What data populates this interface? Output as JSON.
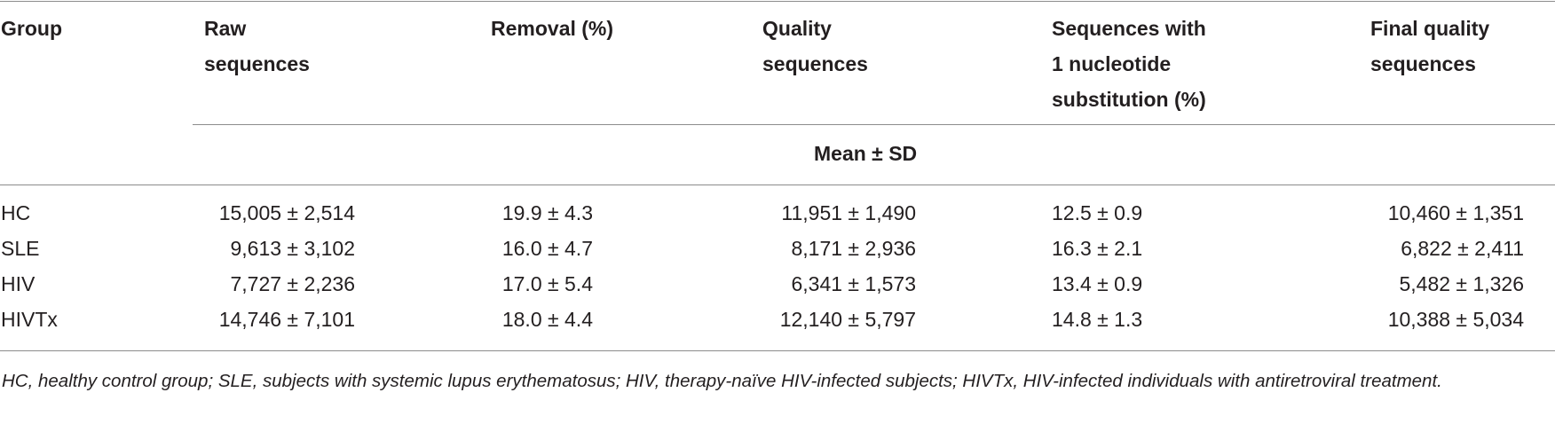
{
  "table": {
    "headers": {
      "group": "Group",
      "raw_l1": "Raw",
      "raw_l2": "sequences",
      "removal": "Removal (%)",
      "quality_l1": "Quality",
      "quality_l2": "sequences",
      "subst_l1": "Sequences with",
      "subst_l2": "1 nucleotide",
      "subst_l3": "substitution (%)",
      "final_l1": "Final quality",
      "final_l2": "sequences",
      "subheader": "Mean ± SD"
    },
    "rows": [
      {
        "group": "HC",
        "raw": "15,005 ± 2,514",
        "removal": "19.9 ± 4.3",
        "quality": "11,951 ± 1,490",
        "subst": "12.5 ± 0.9",
        "final": "10,460 ± 1,351"
      },
      {
        "group": "SLE",
        "raw": "9,613 ± 3,102",
        "removal": "16.0 ± 4.7",
        "quality": "8,171 ± 2,936",
        "subst": "16.3 ± 2.1",
        "final": "6,822 ± 2,411"
      },
      {
        "group": "HIV",
        "raw": "7,727 ± 2,236",
        "removal": "17.0 ± 5.4",
        "quality": "6,341 ± 1,573",
        "subst": "13.4 ± 0.9",
        "final": "5,482 ± 1,326"
      },
      {
        "group": "HIVTx",
        "raw": "14,746 ± 7,101",
        "removal": "18.0 ± 4.4",
        "quality": "12,140 ± 5,797",
        "subst": "14.8 ± 1.3",
        "final": "10,388 ± 5,034"
      }
    ],
    "footnote": "HC, healthy control group; SLE, subjects with systemic lupus erythematosus; HIV, therapy-naïve HIV-infected subjects; HIVTx, HIV-infected individuals with antiretroviral treatment."
  }
}
